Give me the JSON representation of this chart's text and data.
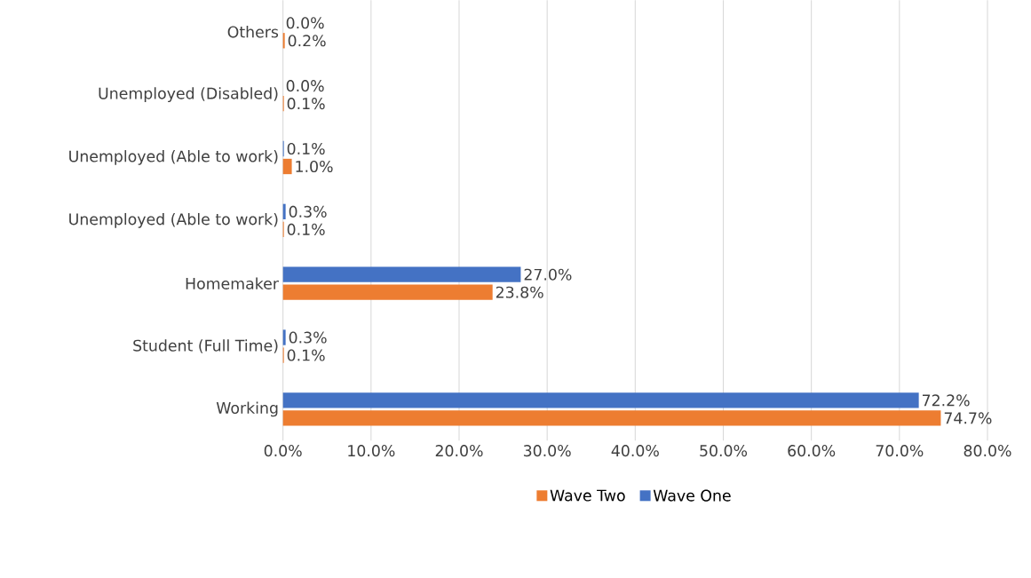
{
  "chart_data": {
    "type": "bar",
    "orientation": "horizontal",
    "categories": [
      "Others",
      "Unemployed (Disabled)",
      "Unemployed (Able to work)",
      "Unemployed (Able to work)",
      "Homemaker",
      "Student (Full Time)",
      "Working"
    ],
    "series": [
      {
        "name": "Wave Two",
        "color": "#ed7d31",
        "values": [
          0.2,
          0.1,
          1.0,
          0.1,
          23.8,
          0.1,
          74.7
        ],
        "value_labels": [
          "0.2%",
          "0.1%",
          "1.0%",
          "0.1%",
          "23.8%",
          "0.1%",
          "74.7%"
        ]
      },
      {
        "name": "Wave One",
        "color": "#4472c4",
        "values": [
          0.0,
          0.0,
          0.1,
          0.3,
          27.0,
          0.3,
          72.2
        ],
        "value_labels": [
          "0.0%",
          "0.0%",
          "0.1%",
          "0.3%",
          "27.0%",
          "0.3%",
          "72.2%"
        ]
      }
    ],
    "xlim": [
      0,
      80
    ],
    "xticks": [
      {
        "value": 0,
        "label": "0.0%"
      },
      {
        "value": 10,
        "label": "10.0%"
      },
      {
        "value": 20,
        "label": "20.0%"
      },
      {
        "value": 30,
        "label": "30.0%"
      },
      {
        "value": 40,
        "label": "40.0%"
      },
      {
        "value": 50,
        "label": "50.0%"
      },
      {
        "value": 60,
        "label": "60.0%"
      },
      {
        "value": 70,
        "label": "70.0%"
      },
      {
        "value": 80,
        "label": "80.0%"
      }
    ],
    "grid": "x",
    "legend": "bottom"
  }
}
